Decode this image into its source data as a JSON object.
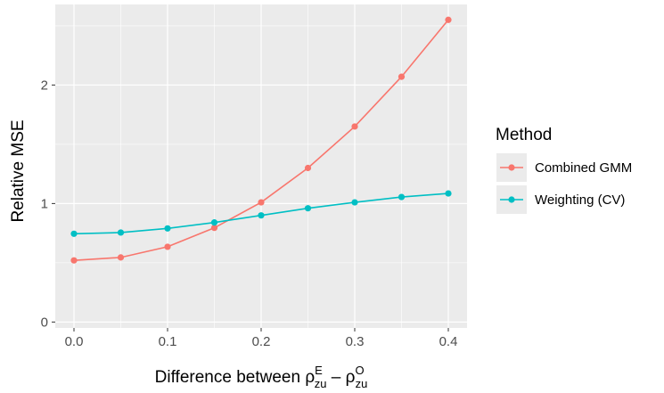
{
  "chart_data": {
    "type": "line",
    "x": [
      0.0,
      0.05,
      0.1,
      0.15,
      0.2,
      0.25,
      0.3,
      0.35,
      0.4
    ],
    "series": [
      {
        "name": "Combined GMM",
        "color": "#F8766D",
        "values": [
          0.52,
          0.545,
          0.635,
          0.795,
          1.01,
          1.3,
          1.65,
          2.07,
          2.55
        ]
      },
      {
        "name": "Weighting (CV)",
        "color": "#00BFC4",
        "values": [
          0.745,
          0.755,
          0.79,
          0.84,
          0.9,
          0.96,
          1.01,
          1.055,
          1.085
        ]
      }
    ],
    "xticks": [
      0.0,
      0.1,
      0.2,
      0.3,
      0.4
    ],
    "xtick_labels": [
      "0.0",
      "0.1",
      "0.2",
      "0.3",
      "0.4"
    ],
    "yticks": [
      0,
      1,
      2
    ],
    "ytick_labels": [
      "0",
      "1",
      "2"
    ],
    "xlim": [
      -0.02,
      0.42
    ],
    "ylim": [
      -0.05,
      2.68
    ],
    "ylabel": "Relative MSE",
    "xlabel": {
      "prefix": "Difference between ρ",
      "sub1": "zu",
      "sup1": "E",
      "minus": " – ρ",
      "sub2": "zu",
      "sup2": "O"
    },
    "legend": {
      "title": "Method",
      "position": "right"
    },
    "grid": true,
    "panel_color": "#EBEBEB"
  }
}
